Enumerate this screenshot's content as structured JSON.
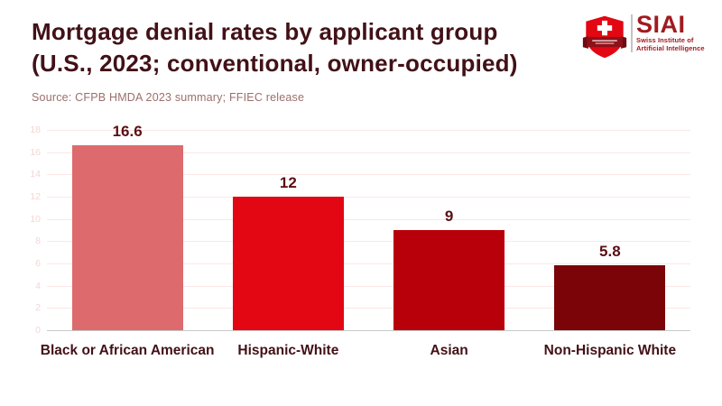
{
  "header": {
    "title_line1": "Mortgage denial rates by applicant group",
    "title_line2": "(U.S., 2023; conventional, owner-occupied)",
    "source": "Source: CFPB HMDA 2023 summary; FFIEC release"
  },
  "logo": {
    "name": "SIAI",
    "subtitle_line1": "Swiss Institute of",
    "subtitle_line2": "Artificial Intelligence",
    "shield_color": "#e30613",
    "banner_color": "#8f1118",
    "text_color": "#a01b20"
  },
  "chart_data": {
    "type": "bar",
    "title": "Mortgage denial rates by applicant group (U.S., 2023; conventional, owner-occupied)",
    "categories": [
      "Black or African American",
      "Hispanic-White",
      "Asian",
      "Non-Hispanic White"
    ],
    "values": [
      16.6,
      12,
      9,
      5.8
    ],
    "value_labels": [
      "16.6",
      "12",
      "9",
      "5.8"
    ],
    "bar_colors": [
      "#dd6b6d",
      "#e30613",
      "#b8000a",
      "#7a0408"
    ],
    "xlabel": "",
    "ylabel": "",
    "ylim": [
      0,
      18
    ],
    "yticks": [
      0,
      2,
      4,
      6,
      8,
      10,
      12,
      14,
      16,
      18
    ],
    "grid": true,
    "legend_position": "none"
  },
  "colors": {
    "title_text": "#421117",
    "source_text": "#9b6f6b",
    "value_label_text": "#5c0e12",
    "category_label_text": "#421117",
    "gridline": "#fae7e5",
    "tick_label": "#f2d7d5",
    "zero_axis_line": "#c9c9c9",
    "background": "#ffffff"
  }
}
